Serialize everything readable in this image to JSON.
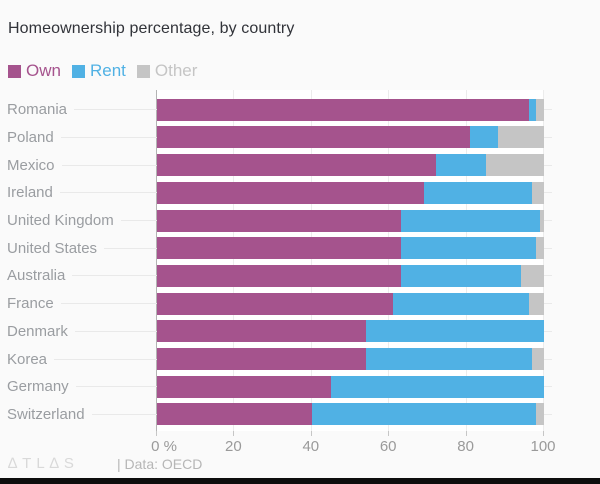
{
  "title": "Homeownership percentage, by country",
  "legend": [
    {
      "label": "Own",
      "color": "#a5538d"
    },
    {
      "label": "Rent",
      "color": "#50b1e4"
    },
    {
      "label": "Other",
      "color": "#c5c5c5"
    }
  ],
  "chart_data": {
    "type": "bar",
    "orientation": "horizontal",
    "stacked": true,
    "title": "Homeownership percentage, by country",
    "xlabel": "",
    "ylabel": "",
    "xlim": [
      0,
      100
    ],
    "grid": true,
    "legend_position": "top-left",
    "categories": [
      "Romania",
      "Poland",
      "Mexico",
      "Ireland",
      "United Kingdom",
      "United States",
      "Australia",
      "France",
      "Denmark",
      "Korea",
      "Germany",
      "Switzerland"
    ],
    "series": [
      {
        "name": "Own",
        "color": "#a5538d",
        "values": [
          96,
          81,
          72,
          69,
          63,
          63,
          63,
          61,
          54,
          54,
          45,
          40
        ]
      },
      {
        "name": "Rent",
        "color": "#50b1e4",
        "values": [
          2,
          7,
          13,
          28,
          36,
          35,
          31,
          35,
          46,
          43,
          55,
          58
        ]
      },
      {
        "name": "Other",
        "color": "#c5c5c5",
        "values": [
          2,
          12,
          15,
          3,
          1,
          2,
          6,
          4,
          0,
          3,
          0,
          2
        ]
      }
    ],
    "x_ticks": [
      {
        "label": "0 %",
        "value": 0
      },
      {
        "label": "20",
        "value": 20
      },
      {
        "label": "40",
        "value": 40
      },
      {
        "label": "60",
        "value": 60
      },
      {
        "label": "80",
        "value": 80
      },
      {
        "label": "100",
        "value": 100
      }
    ]
  },
  "footer": {
    "logo": "∆TL∆S",
    "separator": "|",
    "source": "Data: OECD"
  }
}
